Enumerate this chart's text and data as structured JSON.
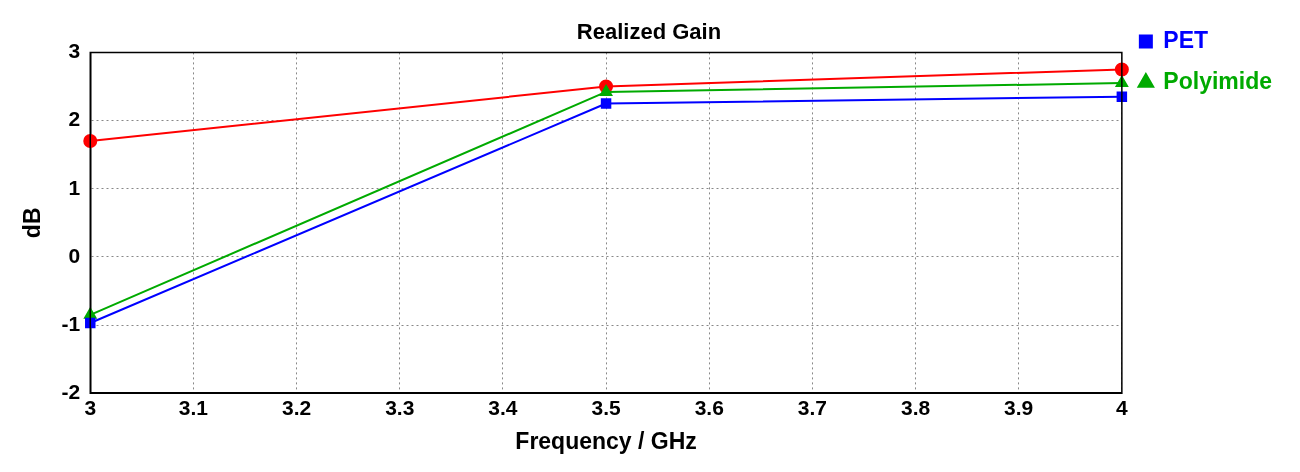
{
  "chart_data": {
    "type": "line",
    "title": "Realized Gain",
    "xlabel": "Frequency / GHz",
    "ylabel": "dB",
    "x": [
      3,
      3.5,
      4
    ],
    "series": [
      {
        "name": "PET",
        "color": "#0000ff",
        "marker": "square",
        "values": [
          -0.97,
          2.25,
          2.35
        ]
      },
      {
        "name": "Polyimide",
        "color": "#00aa00",
        "marker": "triangle",
        "values": [
          -0.85,
          2.42,
          2.55
        ]
      },
      {
        "color": "#ff0000",
        "marker": "circle",
        "values": [
          1.7,
          2.5,
          2.75
        ]
      }
    ],
    "xlim": [
      3,
      4
    ],
    "xticks": [
      3,
      3.1,
      3.2,
      3.3,
      3.4,
      3.5,
      3.6,
      3.7,
      3.8,
      3.9,
      4
    ],
    "ylim": [
      -2,
      3
    ],
    "yticks": [
      -2,
      -1,
      0,
      1,
      2,
      3
    ],
    "grid": true,
    "legend": "right",
    "line_style": "solid"
  }
}
